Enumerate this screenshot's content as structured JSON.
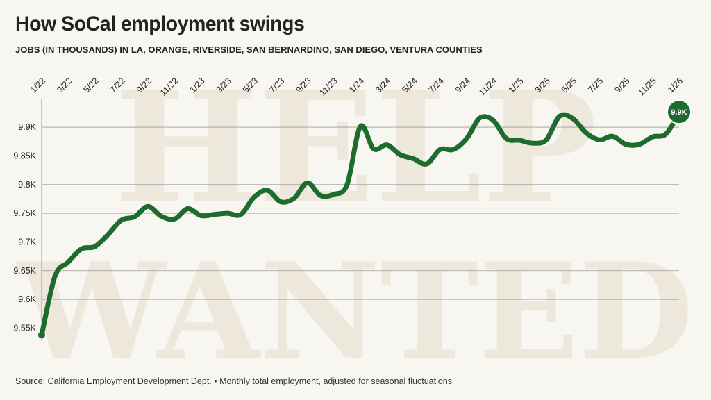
{
  "header": {
    "title": "How SoCal employment swings",
    "subtitle": "JOBS (IN THOUSANDS) IN LA, ORANGE, RIVERSIDE, SAN BERNARDINO, SAN DIEGO, VENTURA COUNTIES"
  },
  "footer": {
    "source": "Source: California Employment Development Dept. • Monthly total employment, adjusted for seasonal fluctuations"
  },
  "watermark": {
    "lines": [
      "HELP",
      "WANTED"
    ]
  },
  "colors": {
    "line": "#1e6b2e",
    "background": "#f7f6f1",
    "watermark": "#e6dccb",
    "grid": "#9a9a9a"
  },
  "chart_data": {
    "type": "line",
    "title": "How SoCal employment swings",
    "subtitle": "JOBS (IN THOUSANDS) IN LA, ORANGE, RIVERSIDE, SAN BERNARDINO, SAN DIEGO, VENTURA COUNTIES",
    "xlabel": "",
    "ylabel": "",
    "x_tick_labels": [
      "1/22",
      "3/22",
      "5/22",
      "7/22",
      "9/22",
      "11/22",
      "1/23",
      "3/23",
      "5/23",
      "7/23",
      "9/23",
      "11/23",
      "1/24",
      "3/24",
      "5/24",
      "7/24",
      "9/24",
      "11/24",
      "1/25",
      "3/25",
      "5/25",
      "7/25",
      "9/25",
      "11/25",
      "1/26"
    ],
    "y_tick_labels": [
      "9.55K",
      "9.6K",
      "9.65K",
      "9.7K",
      "9.75K",
      "9.8K",
      "9.85K",
      "9.9K"
    ],
    "y_ticks": [
      9550,
      9600,
      9650,
      9700,
      9750,
      9800,
      9850,
      9900
    ],
    "ylim": [
      9530,
      9940
    ],
    "grid": "horizontal",
    "end_label": "9.9K",
    "x": [
      "2022-01",
      "2022-02",
      "2022-03",
      "2022-04",
      "2022-05",
      "2022-06",
      "2022-07",
      "2022-08",
      "2022-09",
      "2022-10",
      "2022-11",
      "2022-12",
      "2023-01",
      "2023-02",
      "2023-03",
      "2023-04",
      "2023-05",
      "2023-06",
      "2023-07",
      "2023-08",
      "2023-09",
      "2023-10",
      "2023-11",
      "2023-12",
      "2024-01",
      "2024-02",
      "2024-03",
      "2024-04",
      "2024-05",
      "2024-06",
      "2024-07",
      "2024-08",
      "2024-09",
      "2024-10",
      "2024-11",
      "2024-12",
      "2025-01",
      "2025-02",
      "2025-03",
      "2025-04",
      "2025-05",
      "2025-06",
      "2025-07",
      "2025-08",
      "2025-09",
      "2025-10",
      "2025-11",
      "2025-12",
      "2026-01"
    ],
    "series": [
      {
        "values": [
          9538,
          9640,
          9665,
          9688,
          9692,
          9713,
          9738,
          9744,
          9762,
          9745,
          9740,
          9758,
          9746,
          9748,
          9750,
          9748,
          9778,
          9790,
          9770,
          9776,
          9803,
          9781,
          9783,
          9800,
          9901,
          9862,
          9869,
          9852,
          9845,
          9836,
          9861,
          9861,
          9880,
          9916,
          9912,
          9880,
          9877,
          9872,
          9878,
          9919,
          9915,
          9890,
          9878,
          9884,
          9870,
          9870,
          9883,
          9888,
          9924
        ]
      }
    ]
  }
}
